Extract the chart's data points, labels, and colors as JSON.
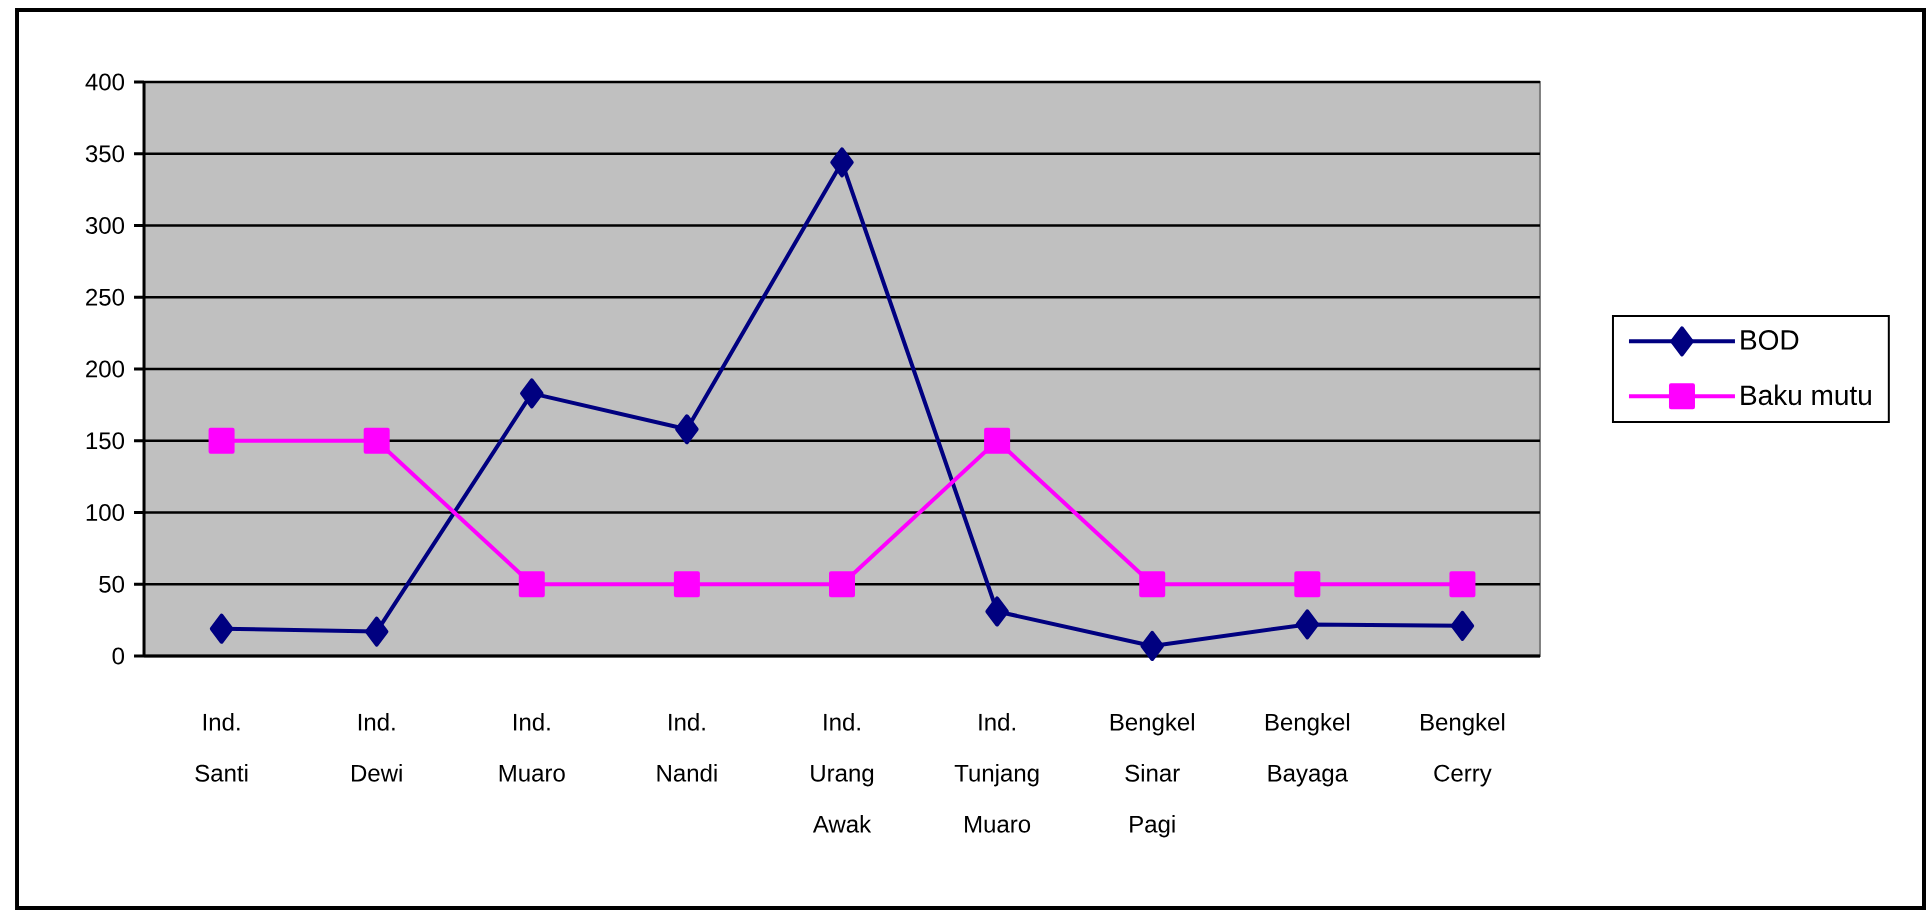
{
  "chart_data": {
    "type": "line",
    "categories": [
      "Ind. Santi",
      "Ind. Dewi",
      "Ind. Muaro",
      "Ind. Nandi",
      "Ind. Urang Awak",
      "Ind. Tunjang Muaro",
      "Bengkel Sinar Pagi",
      "Bengkel Bayaga",
      "Bengkel Cerry"
    ],
    "series": [
      {
        "name": "BOD",
        "color": "#000080",
        "marker": "diamond",
        "values": [
          19,
          17,
          183,
          158,
          344,
          31,
          7,
          22,
          21
        ]
      },
      {
        "name": "Baku mutu",
        "color": "#ff00ff",
        "marker": "square",
        "values": [
          150,
          150,
          50,
          50,
          50,
          150,
          50,
          50,
          50
        ]
      }
    ],
    "ylim": [
      0,
      400
    ],
    "yticks": [
      0,
      50,
      100,
      150,
      200,
      250,
      300,
      350,
      400
    ],
    "grid": "y",
    "legend": "right"
  }
}
